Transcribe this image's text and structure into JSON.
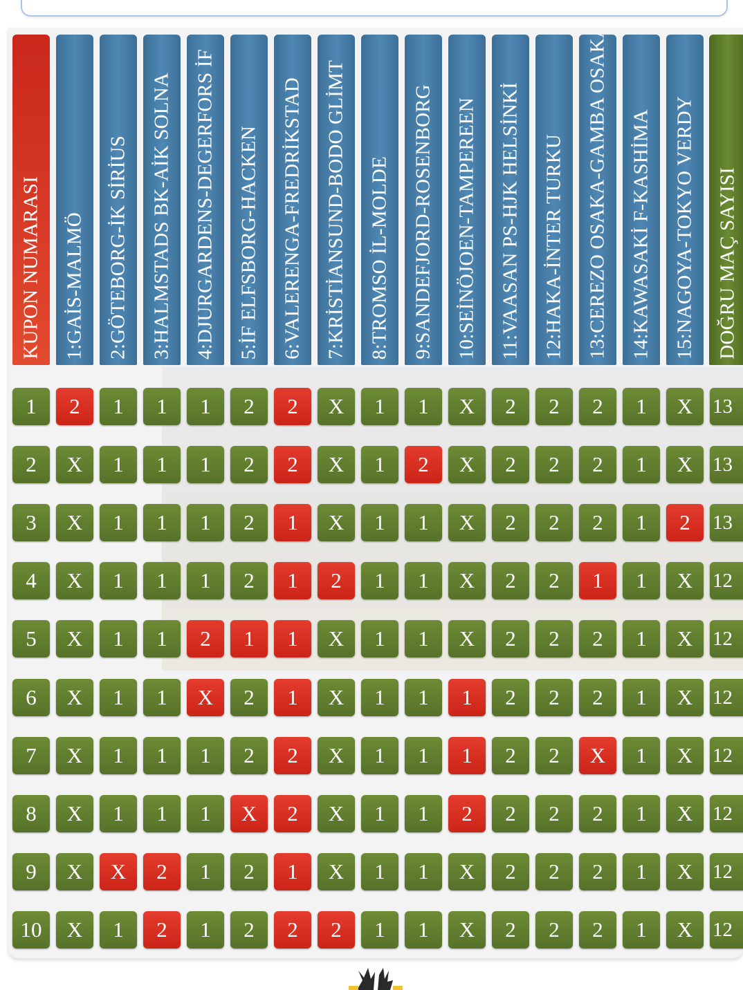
{
  "header": {
    "kupon_label": "KUPON NUMARASI",
    "dogru_label": "DOĞRU MAÇ SAYISI",
    "matches": [
      "1:GAİS-MALMÖ",
      "2:GÖTEBORG-İK SİRİUS",
      "3:HALMSTADS BK-AİK SOLNA",
      "4:DJURGARDENS-DEGERFORS İF",
      "5:İF ELFSBORG-HACKEN",
      "6:VALERENGA-FREDRİKSTAD",
      "7:KRİSTİANSUND-BODO GLİMT",
      "8:TROMSO İL-MOLDE",
      "9:SANDEFJORD-ROSENBORG",
      "10:SEİNÖJOEN-TAMPEREEN",
      "11:VAASAN PS-HJK HELSİNKİ",
      "12:HAKA-İNTER TURKU",
      "13:CEREZO OSAKA-GAMBA OSAKA",
      "14:KAWASAKİ F-KASHİMA",
      "15:NAGOYA-TOKYO VERDY"
    ]
  },
  "colors": {
    "correct": "#5f7d2e",
    "wrong": "#d93022",
    "match_header": "#4579a3",
    "kupon_header": "#d7371f",
    "dogru_header": "#5c7a2a"
  },
  "rows": [
    {
      "kupon": "1",
      "picks": [
        "2",
        "1",
        "1",
        "1",
        "2",
        "2",
        "X",
        "1",
        "1",
        "X",
        "2",
        "2",
        "2",
        "1",
        "X"
      ],
      "wrong": [
        0,
        5
      ],
      "count": "13"
    },
    {
      "kupon": "2",
      "picks": [
        "X",
        "1",
        "1",
        "1",
        "2",
        "2",
        "X",
        "1",
        "2",
        "X",
        "2",
        "2",
        "2",
        "1",
        "X"
      ],
      "wrong": [
        5,
        8
      ],
      "count": "13"
    },
    {
      "kupon": "3",
      "picks": [
        "X",
        "1",
        "1",
        "1",
        "2",
        "1",
        "X",
        "1",
        "1",
        "X",
        "2",
        "2",
        "2",
        "1",
        "2"
      ],
      "wrong": [
        5,
        14
      ],
      "count": "13"
    },
    {
      "kupon": "4",
      "picks": [
        "X",
        "1",
        "1",
        "1",
        "2",
        "1",
        "2",
        "1",
        "1",
        "X",
        "2",
        "2",
        "1",
        "1",
        "X"
      ],
      "wrong": [
        5,
        6,
        12
      ],
      "count": "12"
    },
    {
      "kupon": "5",
      "picks": [
        "X",
        "1",
        "1",
        "2",
        "1",
        "1",
        "X",
        "1",
        "1",
        "X",
        "2",
        "2",
        "2",
        "1",
        "X"
      ],
      "wrong": [
        3,
        4,
        5
      ],
      "count": "12"
    },
    {
      "kupon": "6",
      "picks": [
        "X",
        "1",
        "1",
        "X",
        "2",
        "1",
        "X",
        "1",
        "1",
        "1",
        "2",
        "2",
        "2",
        "1",
        "X"
      ],
      "wrong": [
        3,
        5,
        9
      ],
      "count": "12"
    },
    {
      "kupon": "7",
      "picks": [
        "X",
        "1",
        "1",
        "1",
        "2",
        "2",
        "X",
        "1",
        "1",
        "1",
        "2",
        "2",
        "X",
        "1",
        "X"
      ],
      "wrong": [
        5,
        9,
        12
      ],
      "count": "12"
    },
    {
      "kupon": "8",
      "picks": [
        "X",
        "1",
        "1",
        "1",
        "X",
        "2",
        "X",
        "1",
        "1",
        "2",
        "2",
        "2",
        "2",
        "1",
        "X"
      ],
      "wrong": [
        4,
        5,
        9
      ],
      "count": "12"
    },
    {
      "kupon": "9",
      "picks": [
        "X",
        "X",
        "2",
        "1",
        "2",
        "1",
        "X",
        "1",
        "1",
        "X",
        "2",
        "2",
        "2",
        "1",
        "X"
      ],
      "wrong": [
        1,
        2,
        5
      ],
      "count": "12"
    },
    {
      "kupon": "10",
      "picks": [
        "X",
        "1",
        "2",
        "1",
        "2",
        "2",
        "2",
        "1",
        "1",
        "X",
        "2",
        "2",
        "2",
        "1",
        "X"
      ],
      "wrong": [
        2,
        5,
        6
      ],
      "count": "12"
    }
  ]
}
